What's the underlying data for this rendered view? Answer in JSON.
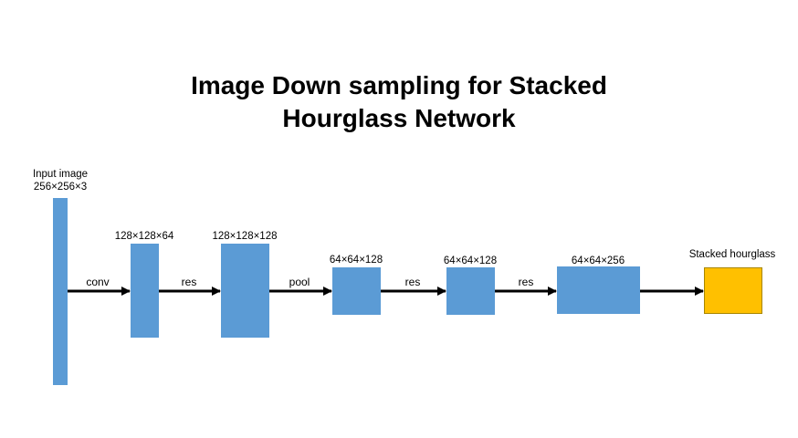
{
  "title": {
    "line1": "Image Down sampling for Stacked",
    "line2": "Hourglass Network"
  },
  "input": {
    "label": "Input image",
    "dims": "256×256×3"
  },
  "stages": [
    {
      "dims": "128×128×64"
    },
    {
      "dims": "128×128×128"
    },
    {
      "dims": "64×64×128"
    },
    {
      "dims": "64×64×128"
    },
    {
      "dims": "64×64×256"
    }
  ],
  "output": {
    "label": "Stacked hourglass"
  },
  "edges": [
    {
      "label": "conv"
    },
    {
      "label": "res"
    },
    {
      "label": "pool"
    },
    {
      "label": "res"
    },
    {
      "label": "res"
    },
    {
      "label": ""
    }
  ],
  "colors": {
    "block": "#5b9bd5",
    "output_block": "#ffc000",
    "arrow": "#000000"
  }
}
